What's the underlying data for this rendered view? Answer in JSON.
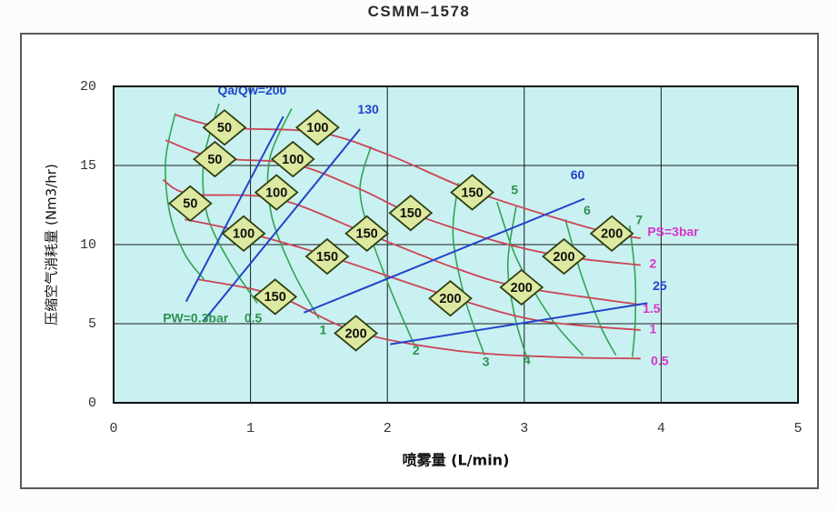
{
  "title": "CSMM–1578",
  "colors": {
    "plot_background": "#c9f1f1",
    "air_pressure_curve": "#cc4455",
    "water_pressure_curve": "#33a355",
    "ratio_line": "#2244cc",
    "air_pressure_label": "#d633cc",
    "water_pressure_label": "#2e9150",
    "ratio_label": "#2244cc",
    "marker_fill": "#dde9a0",
    "marker_stroke": "#2f3f10",
    "grid": "#1a1a1a",
    "tick_text": "#333333"
  },
  "chart_data": {
    "type": "line",
    "title": "CSMM–1578",
    "xlabel": "喷雾量 (L/min)",
    "ylabel": "压缩空气消耗量 (Nm3/hr)",
    "xlim": [
      0,
      5
    ],
    "ylim": [
      0,
      20
    ],
    "x_ticks": [
      0,
      1,
      2,
      3,
      4,
      5
    ],
    "y_ticks": [
      0,
      5,
      10,
      15,
      20
    ],
    "grid": true,
    "legend_position": "none",
    "air_pressure_curves": [
      {
        "label": "PS=3bar",
        "label_pos": [
          3.9,
          10.75
        ],
        "anchor": "start",
        "points": [
          [
            0.45,
            18.2
          ],
          [
            0.81,
            17.4
          ],
          [
            1.49,
            17.1
          ],
          [
            2.0,
            15.7
          ],
          [
            2.62,
            13.4
          ],
          [
            3.3,
            11.5
          ],
          [
            3.64,
            10.7
          ],
          [
            3.85,
            10.4
          ]
        ]
      },
      {
        "label": "2",
        "label_pos": [
          3.94,
          8.75
        ],
        "anchor": "middle",
        "points": [
          [
            0.38,
            16.6
          ],
          [
            0.74,
            15.5
          ],
          [
            1.31,
            15.1
          ],
          [
            1.8,
            13.5
          ],
          [
            2.17,
            12.0
          ],
          [
            2.8,
            10.2
          ],
          [
            3.29,
            9.25
          ],
          [
            3.85,
            8.7
          ]
        ]
      },
      {
        "label": "1.5",
        "label_pos": [
          3.93,
          5.9
        ],
        "anchor": "middle",
        "points": [
          [
            0.36,
            14.1
          ],
          [
            0.56,
            13.2
          ],
          [
            1.19,
            12.9
          ],
          [
            1.85,
            10.7
          ],
          [
            2.5,
            8.5
          ],
          [
            2.98,
            7.3
          ],
          [
            3.85,
            6.2
          ]
        ]
      },
      {
        "label": "1",
        "label_pos": [
          3.94,
          4.6
        ],
        "anchor": "middle",
        "points": [
          [
            0.52,
            11.6
          ],
          [
            0.95,
            10.8
          ],
          [
            1.56,
            9.3
          ],
          [
            2.46,
            6.7
          ],
          [
            3.1,
            5.2
          ],
          [
            3.85,
            4.6
          ]
        ]
      },
      {
        "label": "0.5",
        "label_pos": [
          3.99,
          2.6
        ],
        "anchor": "middle",
        "points": [
          [
            0.62,
            7.8
          ],
          [
            1.18,
            6.8
          ],
          [
            1.77,
            4.5
          ],
          [
            2.5,
            3.3
          ],
          [
            3.2,
            2.9
          ],
          [
            3.85,
            2.8
          ]
        ]
      }
    ],
    "water_pressure_curves": [
      {
        "label": "PW=0.3bar",
        "label_pos": [
          0.36,
          5.3
        ],
        "anchor": "start",
        "points": [
          [
            0.45,
            18.3
          ],
          [
            0.38,
            15.3
          ],
          [
            0.41,
            12.0
          ],
          [
            0.52,
            9.4
          ],
          [
            0.66,
            7.8
          ]
        ]
      },
      {
        "label": "0.5",
        "label_pos": [
          1.02,
          5.3
        ],
        "anchor": "middle",
        "points": [
          [
            0.77,
            18.9
          ],
          [
            0.66,
            15.4
          ],
          [
            0.68,
            12.0
          ],
          [
            0.84,
            9.0
          ],
          [
            1.05,
            6.3
          ]
        ]
      },
      {
        "label": "1",
        "label_pos": [
          1.53,
          4.55
        ],
        "anchor": "middle",
        "points": [
          [
            1.3,
            18.6
          ],
          [
            1.14,
            15.4
          ],
          [
            1.15,
            12.0
          ],
          [
            1.3,
            8.5
          ],
          [
            1.5,
            5.3
          ]
        ]
      },
      {
        "label": "2",
        "label_pos": [
          2.21,
          3.25
        ],
        "anchor": "middle",
        "points": [
          [
            1.88,
            16.2
          ],
          [
            1.8,
            13.5
          ],
          [
            1.88,
            10.5
          ],
          [
            2.03,
            7.0
          ],
          [
            2.2,
            3.6
          ]
        ]
      },
      {
        "label": "3",
        "label_pos": [
          2.72,
          2.55
        ],
        "anchor": "middle",
        "points": [
          [
            2.52,
            13.9
          ],
          [
            2.48,
            10.5
          ],
          [
            2.57,
            6.5
          ],
          [
            2.71,
            3.0
          ]
        ]
      },
      {
        "label": "4",
        "label_pos": [
          3.02,
          2.65
        ],
        "anchor": "middle",
        "points": [
          [
            2.94,
            12.4
          ],
          [
            2.88,
            8.8
          ],
          [
            2.93,
            5.5
          ],
          [
            3.02,
            2.8
          ]
        ]
      },
      {
        "label": "5",
        "label_pos": [
          2.93,
          13.4
        ],
        "anchor": "middle",
        "points": [
          [
            2.8,
            12.7
          ],
          [
            2.95,
            9.0
          ],
          [
            3.2,
            5.3
          ],
          [
            3.43,
            3.0
          ]
        ]
      },
      {
        "label": "6",
        "label_pos": [
          3.46,
          12.1
        ],
        "anchor": "middle",
        "points": [
          [
            3.3,
            11.6
          ],
          [
            3.42,
            8.0
          ],
          [
            3.56,
            4.8
          ],
          [
            3.67,
            3.0
          ]
        ]
      },
      {
        "label": "7",
        "label_pos": [
          3.84,
          11.5
        ],
        "anchor": "middle",
        "points": [
          [
            3.77,
            11.2
          ],
          [
            3.81,
            8.0
          ],
          [
            3.81,
            5.0
          ],
          [
            3.79,
            2.9
          ]
        ]
      }
    ],
    "air_water_ratio_lines": [
      {
        "label": "Qa/Qw=200",
        "label_pos": [
          0.76,
          19.7
        ],
        "anchor": "start",
        "from": [
          0.53,
          6.4
        ],
        "to": [
          1.24,
          18.1
        ]
      },
      {
        "label": "130",
        "label_pos": [
          1.86,
          18.5
        ],
        "anchor": "middle",
        "from": [
          0.66,
          5.2
        ],
        "to": [
          1.8,
          17.3
        ]
      },
      {
        "label": "60",
        "label_pos": [
          3.39,
          14.35
        ],
        "anchor": "middle",
        "from": [
          1.39,
          5.7
        ],
        "to": [
          3.44,
          12.9
        ]
      },
      {
        "label": "25",
        "label_pos": [
          3.99,
          7.35
        ],
        "anchor": "middle",
        "from": [
          2.02,
          3.7
        ],
        "to": [
          3.9,
          6.3
        ]
      }
    ],
    "model_markers": [
      {
        "series": "50",
        "points": [
          [
            0.81,
            17.4
          ],
          [
            0.74,
            15.4
          ],
          [
            0.56,
            12.6
          ]
        ]
      },
      {
        "series": "100",
        "points": [
          [
            1.49,
            17.4
          ],
          [
            1.31,
            15.4
          ],
          [
            1.19,
            13.3
          ],
          [
            0.95,
            10.7
          ]
        ]
      },
      {
        "series": "150",
        "points": [
          [
            2.62,
            13.3
          ],
          [
            2.17,
            12.0
          ],
          [
            1.85,
            10.7
          ],
          [
            1.56,
            9.25
          ],
          [
            1.18,
            6.7
          ]
        ]
      },
      {
        "series": "200",
        "points": [
          [
            3.64,
            10.7
          ],
          [
            3.29,
            9.25
          ],
          [
            2.98,
            7.3
          ],
          [
            2.46,
            6.6
          ],
          [
            1.77,
            4.4
          ]
        ]
      }
    ]
  }
}
